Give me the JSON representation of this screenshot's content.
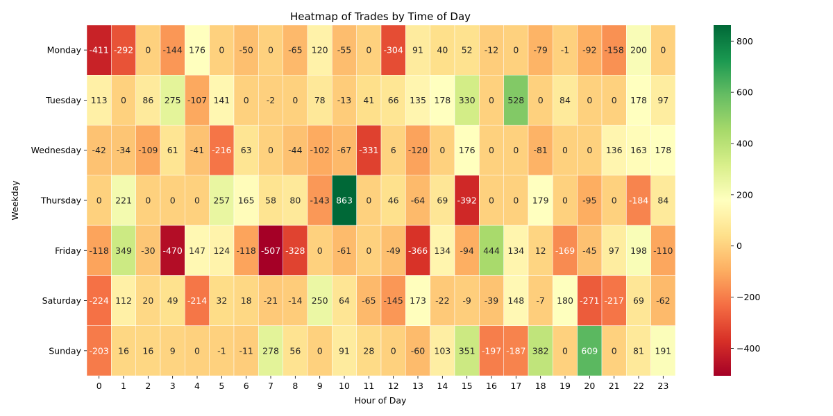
{
  "chart_data": {
    "type": "heatmap",
    "title": "Heatmap of Trades by Time of Day",
    "xlabel": "Hour of Day",
    "ylabel": "Weekday",
    "x_categories": [
      "0",
      "1",
      "2",
      "3",
      "4",
      "5",
      "6",
      "7",
      "8",
      "9",
      "10",
      "11",
      "12",
      "13",
      "14",
      "15",
      "16",
      "17",
      "18",
      "19",
      "20",
      "21",
      "22",
      "23"
    ],
    "y_categories": [
      "Monday",
      "Tuesday",
      "Wednesday",
      "Thursday",
      "Friday",
      "Saturday",
      "Sunday"
    ],
    "values": [
      [
        -411,
        -292,
        0,
        -144,
        176,
        0,
        -50,
        0,
        -65,
        120,
        -55,
        0,
        -304,
        91,
        40,
        52,
        -12,
        0,
        -79,
        -1,
        -92,
        -158,
        200,
        0
      ],
      [
        113,
        0,
        86,
        275,
        -107,
        141,
        0,
        -2,
        0,
        78,
        -13,
        41,
        66,
        135,
        178,
        330,
        0,
        528,
        0,
        84,
        0,
        0,
        178,
        97
      ],
      [
        -42,
        -34,
        -109,
        61,
        -41,
        -216,
        63,
        0,
        -44,
        -102,
        -67,
        -331,
        6,
        -120,
        0,
        176,
        0,
        0,
        -81,
        0,
        0,
        136,
        163,
        178
      ],
      [
        0,
        221,
        0,
        0,
        0,
        257,
        165,
        58,
        80,
        -143,
        863,
        0,
        46,
        -64,
        69,
        -392,
        0,
        0,
        179,
        0,
        -95,
        0,
        -184,
        84
      ],
      [
        -118,
        349,
        -30,
        -470,
        147,
        124,
        -118,
        -507,
        -328,
        0,
        -61,
        0,
        -49,
        -366,
        134,
        -94,
        444,
        134,
        12,
        -169,
        -45,
        97,
        198,
        -110
      ],
      [
        -224,
        112,
        20,
        49,
        -214,
        32,
        18,
        -21,
        -14,
        250,
        64,
        -65,
        -145,
        173,
        -22,
        -9,
        -39,
        148,
        -7,
        180,
        -271,
        -217,
        69,
        -62
      ],
      [
        -203,
        16,
        16,
        9,
        0,
        -1,
        -11,
        278,
        56,
        0,
        91,
        28,
        0,
        -60,
        103,
        351,
        -197,
        -187,
        382,
        0,
        609,
        0,
        81,
        191
      ]
    ],
    "colormap": "RdYlGn",
    "color_range": [
      -507,
      863
    ],
    "colorbar_ticks": [
      -400,
      -200,
      0,
      200,
      400,
      600,
      800
    ],
    "annotations": true,
    "grid": false,
    "legend": "colorbar-right"
  }
}
